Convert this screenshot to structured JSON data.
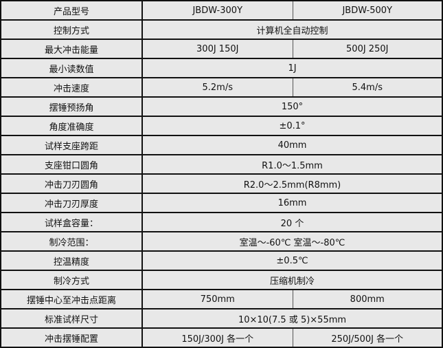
{
  "rows": [
    {
      "label": "产品型号",
      "values": [
        "JBDW-300Y",
        "JBDW-500Y"
      ]
    },
    {
      "label": "控制方式",
      "values": [
        "计算机全自动控制"
      ]
    },
    {
      "label": "最大冲击能量",
      "values": [
        "300J 150J",
        "500J 250J"
      ]
    },
    {
      "label": "最小读数值",
      "values": [
        "1J"
      ]
    },
    {
      "label": "冲击速度",
      "values": [
        "5.2m/s",
        "5.4m/s"
      ]
    },
    {
      "label": "摆锤预扬角",
      "values": [
        "150°"
      ]
    },
    {
      "label": "角度准确度",
      "values": [
        "±0.1°"
      ]
    },
    {
      "label": "试样支座跨距",
      "values": [
        "40mm"
      ]
    },
    {
      "label": "支座钳口圆角",
      "values": [
        "R1.0～1.5mm"
      ]
    },
    {
      "label": "冲击刀刃圆角",
      "values": [
        "R2.0～2.5mm(R8mm)"
      ]
    },
    {
      "label": "冲击刀刃厚度",
      "values": [
        "16mm"
      ]
    },
    {
      "label": "试样盒容量：",
      "values": [
        "20 个"
      ]
    },
    {
      "label": "制冷范围：",
      "values": [
        "室温～-60℃ 室温～-80℃"
      ]
    },
    {
      "label": "控温精度",
      "values": [
        "±0.5℃"
      ]
    },
    {
      "label": "制冷方式",
      "values": [
        "压缩机制冷"
      ]
    },
    {
      "label": "摆锤中心至冲击点距离",
      "values": [
        "750mm",
        "800mm"
      ]
    },
    {
      "label": "标准试样尺寸",
      "values": [
        "10×10(7.5 或 5)×55mm"
      ]
    },
    {
      "label": "冲击摆锤配置",
      "values": [
        "150J/300J 各一个",
        "250J/500J 各一个"
      ]
    }
  ]
}
